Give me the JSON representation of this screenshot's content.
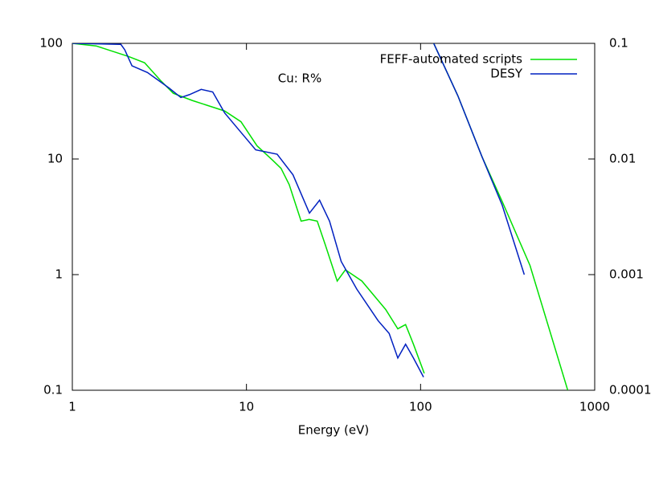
{
  "chart_data": {
    "type": "line",
    "annotation": "Cu: R%",
    "xlabel": "Energy (eV)",
    "xscale": "log",
    "yscale": "log",
    "y2scale": "log",
    "xlim": [
      1,
      1000
    ],
    "ylim": [
      0.1,
      100
    ],
    "y2lim": [
      0.0001,
      0.1
    ],
    "xticks": [
      1,
      10,
      100,
      1000
    ],
    "yticks": [
      0.1,
      1,
      10,
      100
    ],
    "y2ticks": [
      0.0001,
      0.001,
      0.01,
      0.1
    ],
    "legend": "upper right",
    "series": [
      {
        "name": "FEFF-automated scripts",
        "color": "#00e000",
        "x": [
          1,
          1.37,
          2.1,
          2.6,
          3.2,
          3.8,
          4.9,
          7.5,
          9.3,
          11.5,
          14.2,
          15.8,
          17.6,
          20.6,
          22.9,
          25.5,
          28.4,
          33.2,
          37,
          46,
          63,
          74,
          82,
          91,
          105
        ],
        "values": [
          100,
          95,
          77,
          68,
          48,
          37,
          32,
          26,
          21,
          13,
          9.7,
          8.3,
          6,
          2.9,
          3.0,
          2.9,
          1.8,
          0.88,
          1.1,
          0.88,
          0.5,
          0.34,
          0.37,
          0.25,
          0.14
        ]
      },
      {
        "name": "DESY",
        "color": "#0020c0",
        "x": [
          1,
          1.9,
          2.0,
          2.2,
          2.7,
          3.6,
          4.2,
          4.7,
          5.5,
          6.4,
          7.5,
          9.3,
          11.3,
          15,
          18.5,
          23,
          26.3,
          30,
          35,
          43,
          57,
          66,
          74,
          82,
          91,
          104
        ],
        "values": [
          100,
          98,
          88,
          64,
          56,
          41,
          34,
          36,
          40,
          38,
          25,
          17,
          12,
          11,
          7.3,
          3.4,
          4.4,
          2.9,
          1.3,
          0.75,
          0.4,
          0.31,
          0.19,
          0.25,
          0.19,
          0.13
        ]
      },
      {
        "color": "#00e000",
        "axis": "y2",
        "x": [
          119,
          164,
          225,
          294,
          425,
          700
        ],
        "values": [
          0.1,
          0.035,
          0.0105,
          0.0043,
          0.0012,
          0.0001
        ]
      },
      {
        "color": "#0020c0",
        "axis": "y2",
        "x": [
          119,
          164,
          225,
          294,
          394
        ],
        "values": [
          0.1,
          0.035,
          0.0105,
          0.004,
          0.001
        ]
      }
    ]
  }
}
